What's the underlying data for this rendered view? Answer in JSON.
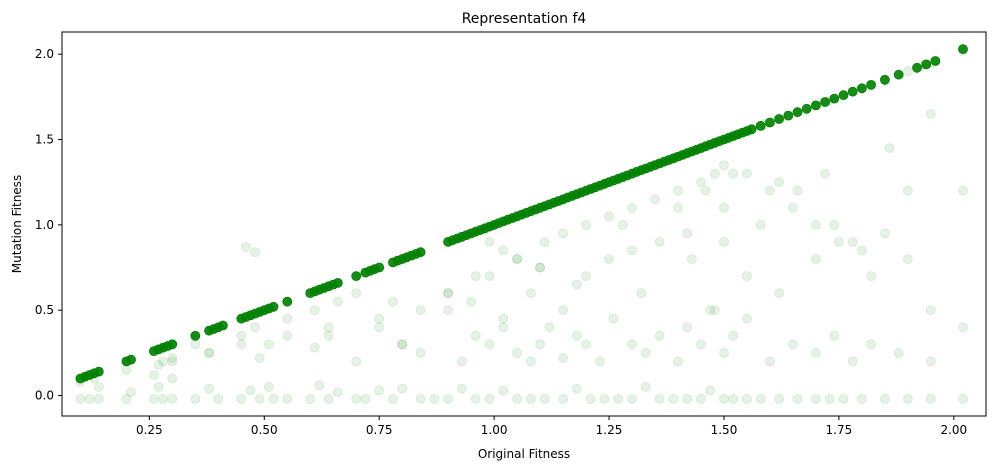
{
  "chart_data": {
    "type": "scatter",
    "title": "Representation f4",
    "xlabel": "Original Fitness",
    "ylabel": "Mutation Fitness",
    "xlim": [
      0.06,
      2.07
    ],
    "ylim": [
      -0.12,
      2.13
    ],
    "xticks": [
      0.25,
      0.5,
      0.75,
      1.0,
      1.25,
      1.5,
      1.75,
      2.0
    ],
    "xtick_labels": [
      "0.25",
      "0.50",
      "0.75",
      "1.00",
      "1.25",
      "1.50",
      "1.75",
      "2.00"
    ],
    "yticks": [
      0.0,
      0.5,
      1.0,
      1.5,
      2.0
    ],
    "ytick_labels": [
      "0.0",
      "0.5",
      "1.0",
      "1.5",
      "2.0"
    ],
    "grid": false,
    "marker_color": "#008000",
    "marker_alpha": 0.1,
    "series": [
      {
        "x": [
          0.1,
          0.11,
          0.12,
          0.13,
          0.14,
          0.2,
          0.21,
          0.26,
          0.27,
          0.28,
          0.3,
          0.35,
          0.38,
          0.39,
          0.41,
          0.45,
          0.47,
          0.49,
          0.51,
          0.55,
          0.61,
          0.62,
          0.64,
          0.66,
          0.7,
          0.72,
          0.74,
          0.78,
          0.8,
          0.82,
          0.84,
          0.9,
          0.93,
          0.96,
          0.99,
          1.02,
          1.05,
          1.08,
          1.11,
          1.15,
          1.18,
          1.21,
          1.24,
          1.27,
          1.3,
          1.33,
          1.36,
          1.39,
          1.42,
          1.45,
          1.48,
          1.5,
          1.53,
          1.56,
          1.59,
          1.62,
          1.66,
          1.7,
          1.73,
          1.76,
          1.8,
          1.85,
          1.9,
          1.93,
          1.95,
          2.02,
          0.1,
          0.12,
          0.14,
          0.14,
          0.2,
          0.21,
          0.26,
          0.27,
          0.28,
          0.3,
          0.3,
          0.35,
          0.38,
          0.4,
          0.45,
          0.47,
          0.49,
          0.51,
          0.52,
          0.55,
          0.6,
          0.62,
          0.64,
          0.66,
          0.7,
          0.72,
          0.75,
          0.78,
          0.8,
          0.84,
          0.87,
          0.9,
          0.93,
          0.96,
          0.99,
          1.02,
          1.05,
          1.08,
          1.11,
          1.15,
          1.18,
          1.21,
          1.24,
          1.27,
          1.3,
          1.33,
          1.36,
          1.39,
          1.42,
          1.45,
          1.47,
          1.5,
          1.52,
          1.55,
          1.58,
          1.62,
          1.66,
          1.7,
          1.73,
          1.76,
          1.8,
          1.85,
          1.9,
          1.95,
          2.02,
          0.1,
          0.13,
          0.2,
          0.26,
          0.28,
          0.3,
          0.35,
          0.38,
          0.45,
          0.48,
          0.51,
          0.55,
          0.61,
          0.64,
          0.66,
          0.7,
          0.75,
          0.78,
          0.8,
          0.84,
          0.9,
          0.95,
          0.99,
          1.02,
          1.05,
          1.08,
          1.11,
          1.15,
          1.2,
          1.25,
          1.28,
          1.32,
          1.36,
          1.4,
          1.43,
          1.46,
          1.48,
          1.5,
          1.52,
          1.55,
          1.58,
          1.62,
          1.66,
          1.7,
          1.74,
          1.78,
          1.82,
          1.9,
          1.95,
          2.02,
          0.27,
          0.3,
          0.38,
          0.45,
          0.49,
          0.55,
          0.61,
          0.64,
          0.7,
          0.75,
          0.8,
          0.84,
          0.9,
          0.93,
          0.96,
          0.99,
          1.02,
          1.05,
          1.08,
          1.1,
          1.12,
          1.15,
          1.18,
          1.2,
          1.23,
          1.26,
          1.3,
          1.33,
          1.36,
          1.4,
          1.42,
          1.45,
          1.47,
          1.5,
          1.52,
          1.55,
          1.6,
          1.65,
          1.7,
          1.74,
          1.78,
          1.82,
          1.88,
          1.95,
          0.95,
          0.99,
          1.02,
          1.05,
          1.1,
          1.15,
          1.2,
          1.25,
          1.3,
          1.35,
          1.4,
          1.45,
          1.48,
          1.5,
          1.55,
          1.6,
          1.65,
          1.7,
          1.75,
          1.8,
          1.85,
          1.9,
          0.46,
          0.48,
          0.9,
          0.96,
          1.1,
          1.18,
          1.3,
          1.42,
          1.5,
          1.62,
          1.72,
          1.86,
          1.95,
          2.02
        ],
        "y": [
          0.1,
          0.11,
          0.12,
          0.13,
          0.14,
          0.2,
          0.21,
          0.26,
          0.27,
          0.28,
          0.3,
          0.35,
          0.38,
          0.39,
          0.41,
          0.45,
          0.47,
          0.49,
          0.51,
          0.55,
          0.61,
          0.62,
          0.64,
          0.66,
          0.7,
          0.72,
          0.74,
          0.78,
          0.8,
          0.82,
          0.84,
          0.9,
          0.93,
          0.96,
          0.99,
          1.02,
          1.05,
          1.08,
          1.11,
          1.15,
          1.18,
          1.21,
          1.24,
          1.27,
          1.3,
          1.33,
          1.36,
          1.39,
          1.42,
          1.45,
          1.48,
          1.5,
          1.53,
          1.56,
          1.59,
          1.62,
          1.66,
          1.7,
          1.73,
          1.76,
          1.8,
          1.85,
          1.9,
          1.93,
          1.95,
          2.02,
          -0.02,
          -0.02,
          -0.02,
          0.05,
          -0.02,
          0.02,
          -0.02,
          0.05,
          -0.02,
          0.1,
          -0.02,
          -0.02,
          0.04,
          -0.02,
          -0.02,
          0.03,
          -0.02,
          0.05,
          -0.02,
          -0.02,
          -0.02,
          0.06,
          -0.02,
          0.02,
          -0.02,
          -0.02,
          0.03,
          -0.02,
          0.04,
          -0.02,
          -0.02,
          -0.02,
          0.04,
          -0.02,
          -0.02,
          0.03,
          -0.02,
          -0.02,
          -0.02,
          -0.02,
          0.04,
          -0.02,
          -0.02,
          -0.02,
          -0.02,
          0.05,
          -0.02,
          -0.02,
          -0.02,
          -0.02,
          0.03,
          -0.02,
          -0.02,
          -0.02,
          -0.02,
          -0.02,
          -0.02,
          -0.02,
          -0.02,
          -0.02,
          -0.02,
          -0.02,
          -0.02,
          -0.02,
          -0.02,
          0.08,
          0.1,
          0.15,
          0.12,
          0.2,
          0.22,
          0.3,
          0.25,
          0.35,
          0.4,
          0.3,
          0.45,
          0.5,
          0.35,
          0.55,
          0.6,
          0.4,
          0.55,
          0.3,
          0.5,
          0.6,
          0.55,
          0.7,
          0.4,
          0.8,
          0.6,
          0.9,
          0.5,
          0.7,
          0.8,
          1.0,
          0.6,
          0.9,
          1.1,
          0.8,
          1.2,
          0.5,
          0.9,
          1.3,
          0.7,
          1.0,
          0.6,
          1.2,
          0.8,
          1.0,
          0.9,
          0.7,
          1.2,
          0.5,
          0.4,
          0.18,
          0.2,
          0.25,
          0.3,
          0.22,
          0.35,
          0.28,
          0.4,
          0.2,
          0.45,
          0.3,
          0.25,
          0.5,
          0.2,
          0.35,
          0.3,
          0.45,
          0.25,
          0.2,
          0.3,
          0.4,
          0.22,
          0.35,
          0.3,
          0.2,
          0.45,
          0.3,
          0.25,
          0.35,
          0.2,
          0.4,
          0.3,
          0.5,
          0.25,
          0.35,
          0.45,
          0.2,
          0.3,
          0.25,
          0.35,
          0.2,
          0.3,
          0.25,
          0.2,
          0.95,
          0.9,
          0.85,
          0.8,
          0.75,
          0.95,
          1.0,
          1.05,
          1.1,
          1.15,
          1.2,
          1.25,
          1.3,
          1.35,
          1.3,
          1.2,
          1.1,
          1.0,
          0.9,
          0.85,
          0.95,
          0.8,
          0.87,
          0.84,
          0.6,
          0.7,
          0.75,
          0.65,
          0.85,
          0.95,
          1.1,
          1.25,
          1.3,
          1.45,
          1.65,
          1.2
        ]
      },
      {
        "x": [
          0.1,
          0.11,
          0.12,
          0.13,
          0.14,
          0.2,
          0.21,
          0.26,
          0.27,
          0.28,
          0.29,
          0.3,
          0.35,
          0.38,
          0.39,
          0.4,
          0.41,
          0.45,
          0.46,
          0.47,
          0.48,
          0.49,
          0.5,
          0.51,
          0.52,
          0.55,
          0.6,
          0.61,
          0.62,
          0.63,
          0.64,
          0.65,
          0.66,
          0.7,
          0.72,
          0.73,
          0.74,
          0.75,
          0.78,
          0.79,
          0.8,
          0.81,
          0.82,
          0.83,
          0.84,
          0.9,
          0.91,
          0.92,
          0.93,
          0.94,
          0.95,
          0.96,
          0.97,
          0.98,
          0.99,
          1.0,
          1.01,
          1.02,
          1.03,
          1.04,
          1.05,
          1.06,
          1.07,
          1.08,
          1.09,
          1.1,
          1.11,
          1.12,
          1.13,
          1.14,
          1.15,
          1.16,
          1.17,
          1.18,
          1.19,
          1.2,
          1.21,
          1.22,
          1.23,
          1.24,
          1.25,
          1.26,
          1.27,
          1.28,
          1.29,
          1.3,
          1.31,
          1.32,
          1.33,
          1.34,
          1.35,
          1.36,
          1.37,
          1.38,
          1.39,
          1.4,
          1.41,
          1.42,
          1.43,
          1.44,
          1.45,
          1.46,
          1.47,
          1.48,
          1.49,
          1.5,
          1.51,
          1.52,
          1.53,
          1.54,
          1.55,
          1.56,
          1.58,
          1.6,
          1.62,
          1.64,
          1.66,
          1.68,
          1.7,
          1.72,
          1.74,
          1.76,
          1.78,
          1.8,
          1.82,
          1.85,
          1.88,
          1.92,
          1.94,
          1.96,
          2.02
        ],
        "y": [
          0.1,
          0.11,
          0.12,
          0.13,
          0.14,
          0.2,
          0.21,
          0.26,
          0.27,
          0.28,
          0.29,
          0.3,
          0.35,
          0.38,
          0.39,
          0.4,
          0.41,
          0.45,
          0.46,
          0.47,
          0.48,
          0.49,
          0.5,
          0.51,
          0.52,
          0.55,
          0.6,
          0.61,
          0.62,
          0.63,
          0.64,
          0.65,
          0.66,
          0.7,
          0.72,
          0.73,
          0.74,
          0.75,
          0.78,
          0.79,
          0.8,
          0.81,
          0.82,
          0.83,
          0.84,
          0.9,
          0.91,
          0.92,
          0.93,
          0.94,
          0.95,
          0.96,
          0.97,
          0.98,
          0.99,
          1.0,
          1.01,
          1.02,
          1.03,
          1.04,
          1.05,
          1.06,
          1.07,
          1.08,
          1.09,
          1.1,
          1.11,
          1.12,
          1.13,
          1.14,
          1.15,
          1.16,
          1.17,
          1.18,
          1.19,
          1.2,
          1.21,
          1.22,
          1.23,
          1.24,
          1.25,
          1.26,
          1.27,
          1.28,
          1.29,
          1.3,
          1.31,
          1.32,
          1.33,
          1.34,
          1.35,
          1.36,
          1.37,
          1.38,
          1.39,
          1.4,
          1.41,
          1.42,
          1.43,
          1.44,
          1.45,
          1.46,
          1.47,
          1.48,
          1.49,
          1.5,
          1.51,
          1.52,
          1.53,
          1.54,
          1.55,
          1.56,
          1.58,
          1.6,
          1.62,
          1.64,
          1.66,
          1.68,
          1.7,
          1.72,
          1.74,
          1.76,
          1.78,
          1.8,
          1.82,
          1.85,
          1.88,
          1.92,
          1.94,
          1.96,
          2.03
        ],
        "opacity": 0.9
      }
    ]
  }
}
